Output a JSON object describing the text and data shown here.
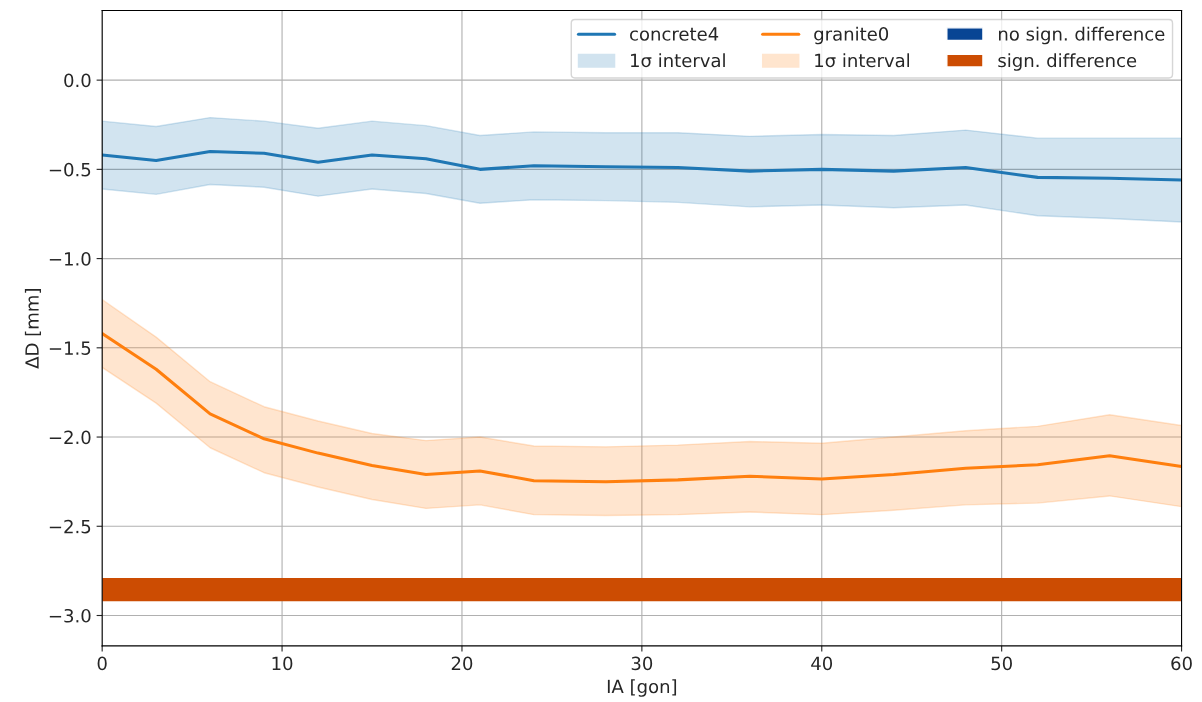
{
  "chart_data": {
    "type": "line",
    "xlabel": "IA [gon]",
    "ylabel": "ΔD [mm]",
    "x": [
      0,
      3,
      6,
      9,
      12,
      15,
      18,
      21,
      24,
      28,
      32,
      36,
      40,
      44,
      48,
      52,
      56,
      60
    ],
    "series": [
      {
        "name": "concrete4",
        "color": "#1f77b4",
        "values": [
          -0.42,
          -0.45,
          -0.4,
          -0.41,
          -0.46,
          -0.42,
          -0.44,
          -0.5,
          -0.48,
          -0.485,
          -0.49,
          -0.51,
          -0.5,
          -0.51,
          -0.49,
          -0.545,
          -0.55,
          -0.56
        ],
        "upper": [
          -0.23,
          -0.26,
          -0.21,
          -0.23,
          -0.27,
          -0.23,
          -0.255,
          -0.31,
          -0.29,
          -0.295,
          -0.295,
          -0.315,
          -0.305,
          -0.31,
          -0.28,
          -0.325,
          -0.325,
          -0.325
        ],
        "lower": [
          -0.61,
          -0.64,
          -0.585,
          -0.6,
          -0.65,
          -0.61,
          -0.635,
          -0.69,
          -0.67,
          -0.675,
          -0.685,
          -0.71,
          -0.7,
          -0.715,
          -0.7,
          -0.76,
          -0.775,
          -0.795
        ]
      },
      {
        "name": "1σ interval",
        "type": "area",
        "color": "#1f77b4",
        "values": [
          null,
          null,
          null,
          null,
          null,
          null,
          null,
          null,
          null,
          null,
          null,
          null,
          null,
          null,
          null,
          null,
          null,
          null
        ]
      },
      {
        "name": "granite0",
        "color": "#ff7f0e",
        "values": [
          -1.42,
          -1.62,
          -1.87,
          -2.01,
          -2.09,
          -2.16,
          -2.21,
          -2.19,
          -2.245,
          -2.25,
          -2.24,
          -2.22,
          -2.235,
          -2.21,
          -2.175,
          -2.155,
          -2.105,
          -2.165
        ],
        "upper": [
          -1.23,
          -1.44,
          -1.69,
          -1.83,
          -1.91,
          -1.98,
          -2.02,
          -2.0,
          -2.05,
          -2.055,
          -2.045,
          -2.025,
          -2.035,
          -2.0,
          -1.965,
          -1.94,
          -1.875,
          -1.935
        ],
        "lower": [
          -1.61,
          -1.81,
          -2.06,
          -2.2,
          -2.28,
          -2.35,
          -2.4,
          -2.38,
          -2.435,
          -2.44,
          -2.435,
          -2.42,
          -2.435,
          -2.41,
          -2.38,
          -2.37,
          -2.33,
          -2.39
        ]
      },
      {
        "name": "1σ interval",
        "type": "area",
        "color": "#ff7f0e",
        "values": [
          null,
          null,
          null,
          null,
          null,
          null,
          null,
          null,
          null,
          null,
          null,
          null,
          null,
          null,
          null,
          null,
          null,
          null
        ]
      },
      {
        "name": "no sign. difference",
        "type": "bar",
        "color": "#084594",
        "values": [
          null,
          null,
          null,
          null,
          null,
          null,
          null,
          null,
          null,
          null,
          null,
          null,
          null,
          null,
          null,
          null,
          null,
          null
        ]
      }
    ],
    "bands": [
      {
        "axis": "y",
        "from": -2.92,
        "to": -2.79,
        "label": "sign. difference",
        "color": "#cc4c02"
      }
    ],
    "xlim": [
      0,
      60
    ],
    "xticks": [
      0,
      10,
      20,
      30,
      40,
      50,
      60
    ],
    "ylim": [
      -3.17,
      0.39
    ],
    "yticks": [
      {
        "value": 0,
        "label": "0.0"
      },
      {
        "value": -0.5,
        "label": "−0.5"
      },
      {
        "value": -1,
        "label": "−1.0"
      },
      {
        "value": -1.5,
        "label": "−1.5"
      },
      {
        "value": -2,
        "label": "−2.0"
      },
      {
        "value": -2.5,
        "label": "−2.5"
      },
      {
        "value": -3,
        "label": "−3.0"
      }
    ],
    "grid": true,
    "legend": "top right"
  }
}
